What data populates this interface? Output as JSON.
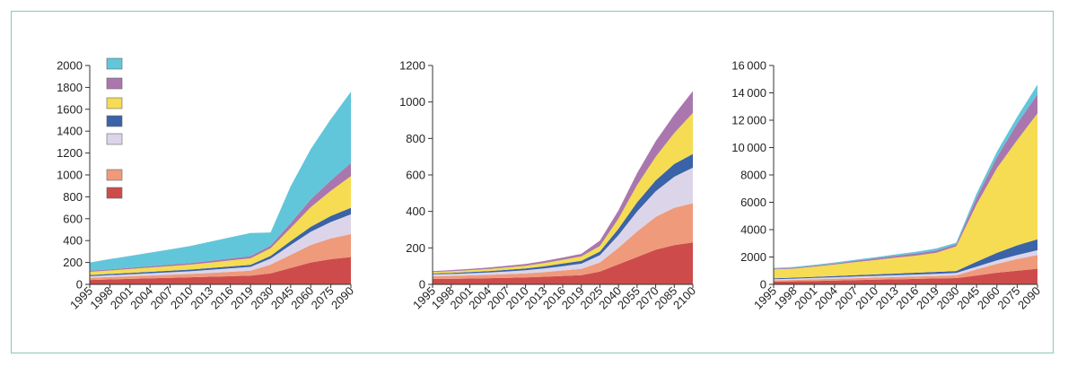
{
  "colors": {
    "cyan": "#62c6da",
    "purple": "#a977ad",
    "yellow": "#f5dc52",
    "blue": "#3a63a8",
    "lavender": "#dcd5e9",
    "salmon": "#ef9a7b",
    "red": "#cd4c4b",
    "frame": "#86c9b9"
  },
  "legend": [
    {
      "color": "cyan",
      "label": ""
    },
    {
      "color": "purple",
      "label": ""
    },
    {
      "color": "yellow",
      "label": ""
    },
    {
      "color": "blue",
      "label": ""
    },
    {
      "color": "lavender",
      "label": ""
    },
    {
      "color": "salmon",
      "label": ""
    },
    {
      "color": "red",
      "label": ""
    }
  ],
  "chart_data": [
    {
      "type": "area",
      "stacked": true,
      "x_labels": [
        "1995",
        "1998",
        "2001",
        "2004",
        "2007",
        "2010",
        "2013",
        "2016",
        "2019",
        "2030",
        "2045",
        "2060",
        "2075",
        "2090"
      ],
      "ylim": [
        0,
        2000
      ],
      "yticks": [
        "0",
        "200",
        "400",
        "600",
        "800",
        "1000",
        "1200",
        "1400",
        "1600",
        "1800",
        "2000"
      ],
      "series": [
        {
          "color": "red",
          "values": [
            40,
            45,
            50,
            55,
            60,
            65,
            70,
            75,
            80,
            100,
            150,
            200,
            230,
            250
          ]
        },
        {
          "color": "salmon",
          "values": [
            20,
            22,
            24,
            26,
            28,
            30,
            35,
            40,
            45,
            80,
            120,
            160,
            190,
            210
          ]
        },
        {
          "color": "lavender",
          "values": [
            15,
            17,
            19,
            21,
            23,
            25,
            28,
            32,
            35,
            55,
            90,
            120,
            150,
            180
          ]
        },
        {
          "color": "blue",
          "values": [
            10,
            11,
            12,
            13,
            14,
            15,
            16,
            17,
            18,
            25,
            35,
            45,
            55,
            60
          ]
        },
        {
          "color": "yellow",
          "values": [
            30,
            32,
            35,
            38,
            42,
            45,
            50,
            55,
            60,
            70,
            120,
            180,
            230,
            290
          ]
        },
        {
          "color": "purple",
          "values": [
            10,
            11,
            12,
            13,
            14,
            15,
            16,
            18,
            20,
            25,
            45,
            70,
            95,
            120
          ]
        },
        {
          "color": "cyan",
          "values": [
            75,
            93,
            108,
            124,
            139,
            155,
            175,
            193,
            212,
            120,
            335,
            460,
            560,
            650
          ]
        }
      ]
    },
    {
      "type": "area",
      "stacked": true,
      "x_labels": [
        "1995",
        "1998",
        "2001",
        "2004",
        "2007",
        "2010",
        "2013",
        "2016",
        "2019",
        "2025",
        "2040",
        "2055",
        "2070",
        "2085",
        "2100"
      ],
      "ylim": [
        0,
        1200
      ],
      "yticks": [
        "0",
        "200",
        "400",
        "600",
        "800",
        "1000",
        "1200"
      ],
      "series": [
        {
          "color": "red",
          "values": [
            30,
            30,
            32,
            34,
            36,
            38,
            42,
            46,
            50,
            70,
            110,
            150,
            190,
            215,
            230
          ]
        },
        {
          "color": "salmon",
          "values": [
            15,
            16,
            17,
            18,
            20,
            22,
            25,
            30,
            35,
            50,
            90,
            140,
            180,
            205,
            215
          ]
        },
        {
          "color": "lavender",
          "values": [
            10,
            11,
            12,
            13,
            15,
            17,
            20,
            24,
            28,
            40,
            70,
            110,
            140,
            170,
            195
          ]
        },
        {
          "color": "blue",
          "values": [
            5,
            6,
            7,
            8,
            9,
            10,
            12,
            14,
            16,
            20,
            35,
            50,
            60,
            70,
            75
          ]
        },
        {
          "color": "yellow",
          "values": [
            8,
            9,
            10,
            11,
            13,
            15,
            18,
            21,
            24,
            30,
            55,
            95,
            130,
            170,
            225
          ]
        },
        {
          "color": "purple",
          "values": [
            5,
            6,
            7,
            8,
            9,
            10,
            11,
            12,
            14,
            30,
            45,
            65,
            85,
            100,
            120
          ]
        },
        {
          "color": "cyan",
          "values": [
            0,
            0,
            0,
            0,
            0,
            0,
            0,
            0,
            0,
            0,
            0,
            0,
            0,
            0,
            0
          ]
        }
      ]
    },
    {
      "type": "area",
      "stacked": true,
      "x_labels": [
        "1995",
        "1998",
        "2001",
        "2004",
        "2007",
        "2010",
        "2013",
        "2016",
        "2019",
        "2030",
        "2045",
        "2060",
        "2075",
        "2090"
      ],
      "ylim": [
        0,
        16000
      ],
      "yticks": [
        "0",
        "2000",
        "4000",
        "6000",
        "8000",
        "10000",
        "12000",
        "14000",
        "16000"
      ],
      "series": [
        {
          "color": "red",
          "values": [
            200,
            220,
            250,
            280,
            310,
            340,
            370,
            400,
            430,
            460,
            650,
            850,
            1000,
            1150
          ]
        },
        {
          "color": "salmon",
          "values": [
            100,
            110,
            120,
            130,
            140,
            150,
            160,
            170,
            180,
            200,
            450,
            650,
            850,
            1000
          ]
        },
        {
          "color": "lavender",
          "values": [
            80,
            90,
            100,
            110,
            120,
            130,
            140,
            150,
            160,
            170,
            200,
            250,
            300,
            350
          ]
        },
        {
          "color": "blue",
          "values": [
            60,
            70,
            80,
            90,
            100,
            110,
            120,
            130,
            140,
            150,
            350,
            550,
            700,
            800
          ]
        },
        {
          "color": "yellow",
          "values": [
            660,
            660,
            750,
            840,
            950,
            1050,
            1160,
            1250,
            1390,
            1800,
            4200,
            6200,
            7700,
            9200
          ]
        },
        {
          "color": "purple",
          "values": [
            50,
            60,
            70,
            80,
            100,
            120,
            140,
            160,
            180,
            150,
            500,
            800,
            1200,
            1400
          ]
        },
        {
          "color": "cyan",
          "values": [
            50,
            60,
            60,
            70,
            80,
            90,
            100,
            120,
            140,
            120,
            300,
            400,
            500,
            700
          ]
        }
      ]
    }
  ]
}
